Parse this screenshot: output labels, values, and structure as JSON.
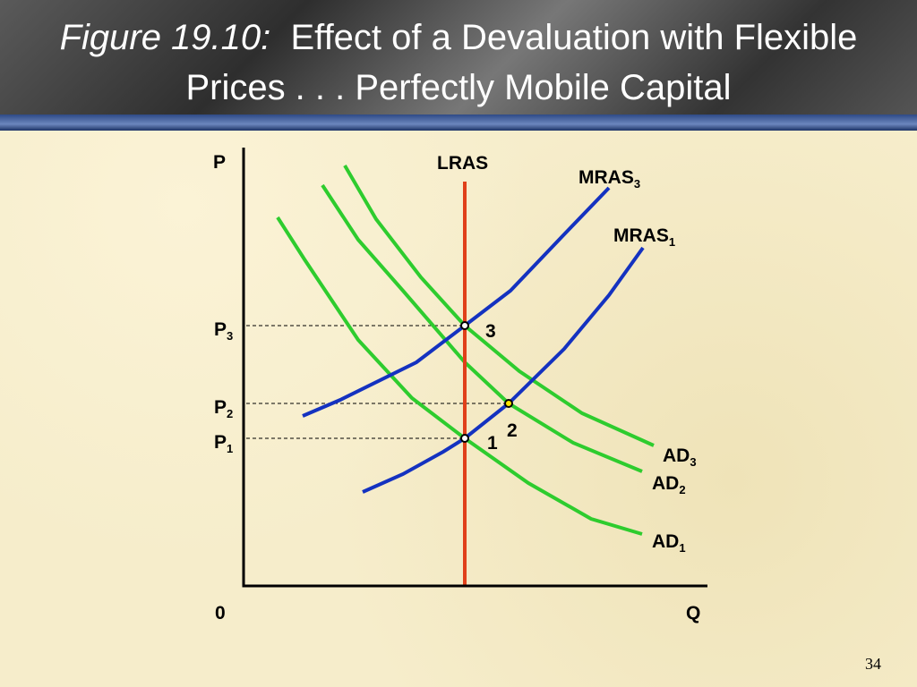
{
  "header": {
    "figure": "Figure 19.10:",
    "title": "Effect of a Devaluation with Flexible Prices . . . Perfectly Mobile Capital"
  },
  "diagram": {
    "y_axis": "P",
    "x_axis": "Q",
    "origin": "0",
    "curves": [
      {
        "label": "LRAS"
      },
      {
        "label": "MRAS",
        "sub": "3"
      },
      {
        "label": "MRAS",
        "sub": "1"
      },
      {
        "label": "AD",
        "sub": "3"
      },
      {
        "label": "AD",
        "sub": "2"
      },
      {
        "label": "AD",
        "sub": "1"
      }
    ],
    "price_levels": [
      {
        "label": "P",
        "sub": "3"
      },
      {
        "label": "P",
        "sub": "2"
      },
      {
        "label": "P",
        "sub": "1"
      }
    ],
    "points": [
      "3",
      "2",
      "1"
    ]
  },
  "page_number": "34"
}
